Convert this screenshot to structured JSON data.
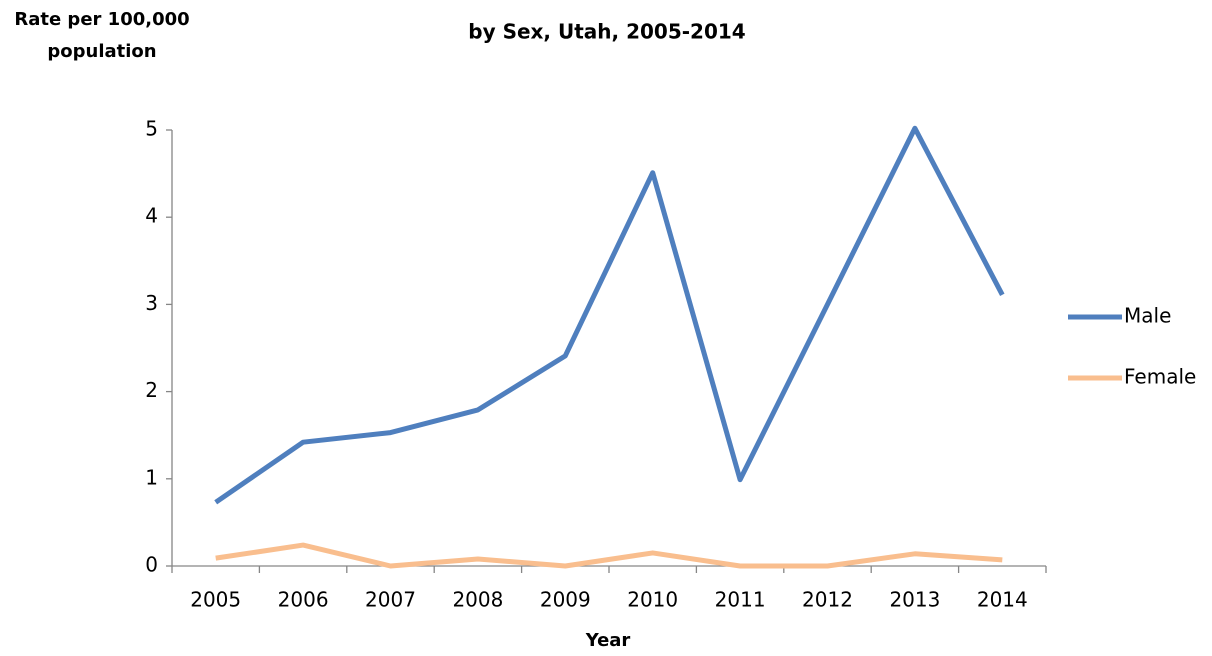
{
  "chart_data": {
    "type": "line",
    "title": "by Sex, Utah, 2005-2014",
    "ylabel": [
      "Rate per 100,000",
      "population"
    ],
    "xlabel": "Year",
    "categories": [
      "2005",
      "2006",
      "2007",
      "2008",
      "2009",
      "2010",
      "2011",
      "2012",
      "2013",
      "2014"
    ],
    "series": [
      {
        "name": "Male",
        "color": "#4f7fbe",
        "values": [
          0.73,
          1.42,
          1.53,
          1.79,
          2.41,
          4.51,
          0.99,
          3.0,
          5.02,
          3.11
        ]
      },
      {
        "name": "Female",
        "color": "#f9be8e",
        "values": [
          0.09,
          0.24,
          0,
          0.08,
          0,
          0.15,
          0,
          0,
          0.14,
          0.07
        ]
      }
    ],
    "ylim": [
      0,
      5
    ],
    "yticks": [
      0,
      1,
      2,
      3,
      4,
      5
    ],
    "legend": "right"
  }
}
